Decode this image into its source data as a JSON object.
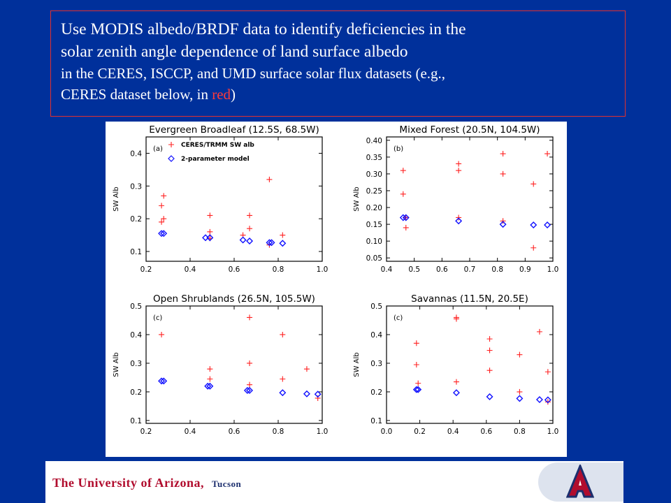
{
  "title": {
    "line1": "Use MODIS albedo/BRDF data to identify deficiencies in the",
    "line2": "solar zenith angle dependence of land surface albedo",
    "line3": "in the CERES, ISCCP, and UMD surface solar flux datasets (e.g.,",
    "line4_pre": "CERES dataset below, in ",
    "line4_red": "red",
    "line4_post": ")"
  },
  "colors": {
    "background": "#00309b",
    "ceres": "#ff2020",
    "model": "#1010ff",
    "accent_red": "#b10d2e"
  },
  "footer": {
    "university": "The University of Arizona",
    "city": "Tucson",
    "logo_icon": "block-a-logo-icon"
  },
  "chart_data": [
    {
      "type": "scatter",
      "title": "Evergreen Broadleaf (12.5S, 68.5W)",
      "panel_label": "(a)",
      "legend": [
        "CERES/TRMM SW alb",
        "2-parameter model"
      ],
      "ylabel": "SW Alb",
      "xlim": [
        0.2,
        1.0
      ],
      "ylim": [
        0.07,
        0.45
      ],
      "xticks": [
        "0.2",
        "0.4",
        "0.6",
        "0.8",
        "1.0"
      ],
      "xtick_values": [
        0.2,
        0.4,
        0.6,
        0.8,
        1.0
      ],
      "yticks": [
        "0.1",
        "0.2",
        "0.3",
        "0.4"
      ],
      "ytick_values": [
        0.1,
        0.2,
        0.3,
        0.4
      ],
      "series": [
        {
          "name": "CERES/TRMM SW alb",
          "marker": "plus",
          "x": [
            0.27,
            0.27,
            0.28,
            0.28,
            0.49,
            0.49,
            0.49,
            0.64,
            0.67,
            0.67,
            0.76,
            0.76,
            0.82
          ],
          "y": [
            0.24,
            0.19,
            0.27,
            0.2,
            0.21,
            0.16,
            0.14,
            0.15,
            0.21,
            0.17,
            0.32,
            0.12,
            0.15
          ]
        },
        {
          "name": "2-parameter model",
          "marker": "diamond",
          "x": [
            0.27,
            0.28,
            0.47,
            0.49,
            0.64,
            0.67,
            0.76,
            0.77,
            0.82
          ],
          "y": [
            0.155,
            0.155,
            0.142,
            0.142,
            0.135,
            0.132,
            0.127,
            0.127,
            0.125
          ]
        }
      ]
    },
    {
      "type": "scatter",
      "title": "Mixed Forest (20.5N, 104.5W)",
      "panel_label": "(b)",
      "ylabel": "SW Alb",
      "xlim": [
        0.4,
        1.0
      ],
      "ylim": [
        0.04,
        0.41
      ],
      "xticks": [
        "0.4",
        "0.5",
        "0.6",
        "0.7",
        "0.8",
        "0.9",
        "1.0"
      ],
      "xtick_values": [
        0.4,
        0.5,
        0.6,
        0.7,
        0.8,
        0.9,
        1.0
      ],
      "yticks": [
        "0.05",
        "0.10",
        "0.15",
        "0.20",
        "0.25",
        "0.30",
        "0.35",
        "0.40"
      ],
      "ytick_values": [
        0.05,
        0.1,
        0.15,
        0.2,
        0.25,
        0.3,
        0.35,
        0.4
      ],
      "series": [
        {
          "name": "",
          "marker": "plus",
          "x": [
            0.46,
            0.46,
            0.47,
            0.47,
            0.66,
            0.66,
            0.66,
            0.82,
            0.82,
            0.82,
            0.93,
            0.93,
            0.98
          ],
          "y": [
            0.31,
            0.24,
            0.17,
            0.14,
            0.33,
            0.31,
            0.17,
            0.36,
            0.3,
            0.16,
            0.27,
            0.08,
            0.36
          ]
        },
        {
          "name": "",
          "marker": "diamond",
          "x": [
            0.46,
            0.47,
            0.66,
            0.82,
            0.93,
            0.98
          ],
          "y": [
            0.17,
            0.17,
            0.16,
            0.15,
            0.148,
            0.148
          ]
        }
      ]
    },
    {
      "type": "scatter",
      "title": "Open Shrublands (26.5N, 105.5W)",
      "panel_label": "(c)",
      "ylabel": "SW Alb",
      "xlim": [
        0.2,
        1.0
      ],
      "ylim": [
        0.09,
        0.5
      ],
      "xticks": [
        "0.2",
        "0.4",
        "0.6",
        "0.8",
        "1.0"
      ],
      "xtick_values": [
        0.2,
        0.4,
        0.6,
        0.8,
        1.0
      ],
      "yticks": [
        "0.1",
        "0.2",
        "0.3",
        "0.4",
        "0.5"
      ],
      "ytick_values": [
        0.1,
        0.2,
        0.3,
        0.4,
        0.5
      ],
      "series": [
        {
          "name": "",
          "marker": "plus",
          "x": [
            0.27,
            0.49,
            0.49,
            0.67,
            0.67,
            0.67,
            0.82,
            0.82,
            0.93,
            0.98
          ],
          "y": [
            0.4,
            0.28,
            0.245,
            0.46,
            0.3,
            0.225,
            0.4,
            0.245,
            0.28,
            0.178
          ]
        },
        {
          "name": "",
          "marker": "diamond",
          "x": [
            0.27,
            0.28,
            0.48,
            0.49,
            0.66,
            0.67,
            0.82,
            0.93,
            0.98
          ],
          "y": [
            0.238,
            0.238,
            0.22,
            0.22,
            0.205,
            0.205,
            0.197,
            0.193,
            0.192
          ]
        }
      ]
    },
    {
      "type": "scatter",
      "title": "Savannas (11.5N, 20.5E)",
      "panel_label": "(c)",
      "ylabel": "SW Alb",
      "xlim": [
        0.0,
        1.0
      ],
      "ylim": [
        0.09,
        0.5
      ],
      "xticks": [
        "0.0",
        "0.2",
        "0.4",
        "0.6",
        "0.8",
        "1.0"
      ],
      "xtick_values": [
        0.0,
        0.2,
        0.4,
        0.6,
        0.8,
        1.0
      ],
      "yticks": [
        "0.1",
        "0.2",
        "0.3",
        "0.4",
        "0.5"
      ],
      "ytick_values": [
        0.1,
        0.2,
        0.3,
        0.4,
        0.5
      ],
      "series": [
        {
          "name": "",
          "marker": "plus",
          "x": [
            0.18,
            0.18,
            0.19,
            0.42,
            0.42,
            0.42,
            0.62,
            0.62,
            0.62,
            0.8,
            0.8,
            0.92,
            0.97,
            0.97
          ],
          "y": [
            0.37,
            0.295,
            0.23,
            0.46,
            0.455,
            0.235,
            0.385,
            0.345,
            0.275,
            0.33,
            0.2,
            0.41,
            0.27,
            0.165
          ]
        },
        {
          "name": "",
          "marker": "diamond",
          "x": [
            0.18,
            0.19,
            0.42,
            0.62,
            0.8,
            0.92,
            0.97
          ],
          "y": [
            0.208,
            0.208,
            0.197,
            0.183,
            0.177,
            0.173,
            0.172
          ]
        }
      ]
    }
  ]
}
